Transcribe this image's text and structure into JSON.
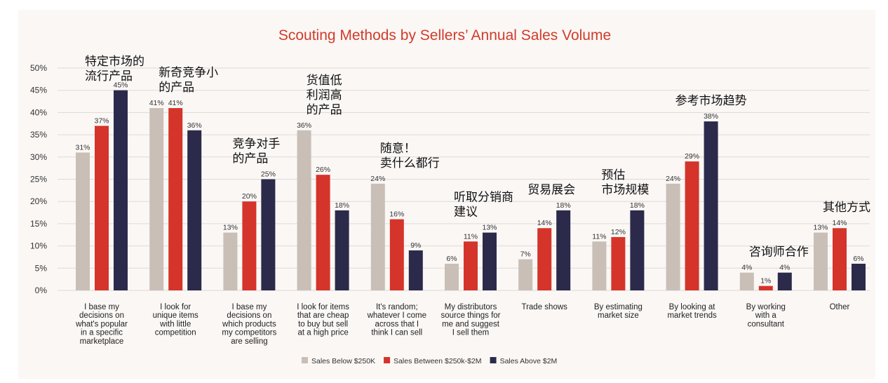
{
  "chart_data": {
    "type": "bar",
    "title": "Scouting Methods by Sellers’ Annual Sales Volume",
    "ylim": [
      0,
      50
    ],
    "yticks": [
      "0%",
      "5%",
      "10%",
      "15%",
      "20%",
      "25%",
      "30%",
      "35%",
      "40%",
      "45%",
      "50%"
    ],
    "grid": true,
    "legend_position": "bottom",
    "categories": [
      [
        "I base my",
        "decisions on",
        "what's popular",
        "in a specific",
        "marketplace"
      ],
      [
        "I look for",
        "unique items",
        "with little",
        "competition"
      ],
      [
        "I base my",
        "decisions on",
        "which products",
        "my competitors",
        "are selling"
      ],
      [
        "I look for items",
        "that are cheap",
        "to buy but sell",
        "at a high price"
      ],
      [
        "It's random;",
        "whatever I come",
        "across that I",
        "think I can sell"
      ],
      [
        "My distributors",
        "source things for",
        "me and suggest",
        "I sell them"
      ],
      [
        "Trade shows"
      ],
      [
        "By estimating",
        "market size"
      ],
      [
        "By looking at",
        "market trends"
      ],
      [
        "By working",
        "with a",
        "consultant"
      ],
      [
        "Other"
      ]
    ],
    "series": [
      {
        "name": "Sales Below $250K",
        "color": "#c9bfb7",
        "values": [
          31,
          41,
          13,
          36,
          24,
          6,
          7,
          11,
          24,
          4,
          13
        ]
      },
      {
        "name": "Sales Between $250k-$2M",
        "color": "#d5342a",
        "values": [
          37,
          41,
          20,
          26,
          16,
          11,
          14,
          12,
          29,
          1,
          14
        ]
      },
      {
        "name": "Sales Above $2M",
        "color": "#2c2a4a",
        "values": [
          45,
          36,
          25,
          18,
          9,
          13,
          18,
          18,
          38,
          4,
          6
        ]
      }
    ],
    "annotations": [
      {
        "lines": [
          "特定市场的",
          "流行产品"
        ],
        "category": 0
      },
      {
        "lines": [
          "新奇竞争小",
          "的产品"
        ],
        "category": 1
      },
      {
        "lines": [
          "竞争对手",
          "的产品"
        ],
        "category": 2
      },
      {
        "lines": [
          "货值低",
          "利润高",
          "的产品"
        ],
        "category": 3
      },
      {
        "lines": [
          "随意！",
          "卖什么都行"
        ],
        "category": 4
      },
      {
        "lines": [
          "听取分销商",
          "建议"
        ],
        "category": 5
      },
      {
        "lines": [
          "贸易展会"
        ],
        "category": 6
      },
      {
        "lines": [
          "预估",
          "市场规模"
        ],
        "category": 7
      },
      {
        "lines": [
          "参考市场趋势"
        ],
        "category": 8
      },
      {
        "lines": [
          "咨询师合作"
        ],
        "category": 9
      },
      {
        "lines": [
          "其他方式"
        ],
        "category": 10
      }
    ]
  }
}
